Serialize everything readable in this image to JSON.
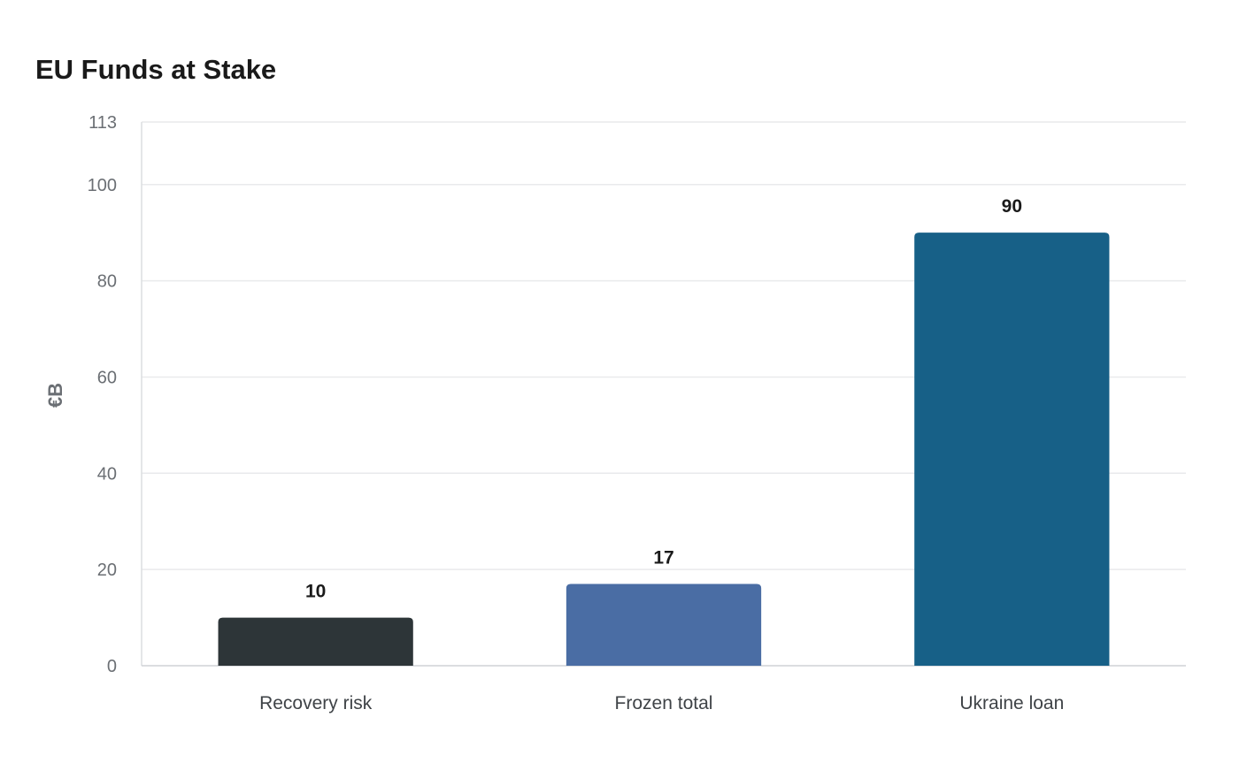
{
  "chart_data": {
    "type": "bar",
    "title": "EU Funds at Stake",
    "xlabel": "",
    "ylabel": "€B",
    "categories": [
      "Recovery risk",
      "Frozen total",
      "Ukraine loan"
    ],
    "values": [
      10,
      17,
      90
    ],
    "colors": [
      "#2d3538",
      "#4a6da4",
      "#176087"
    ],
    "ylim": [
      0,
      113
    ],
    "yticks": [
      0,
      20,
      40,
      60,
      80,
      100,
      113
    ],
    "grid": true,
    "legend": "none",
    "data_labels": true
  }
}
